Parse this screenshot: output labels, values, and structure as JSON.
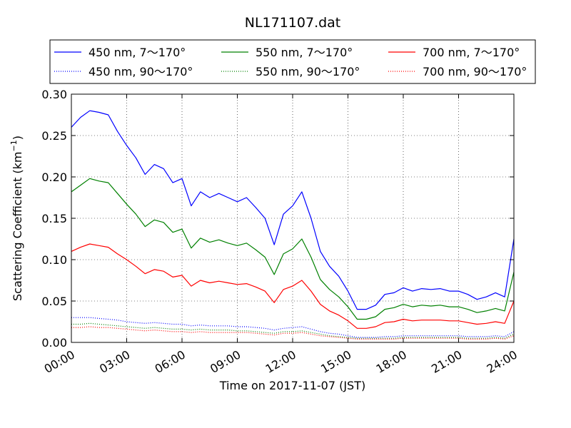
{
  "chart_data": {
    "type": "line",
    "title": "NL171107.dat",
    "xlabel": "Time on 2017-11-07 (JST)",
    "ylabel": "Scattering Coefficient (km",
    "ylabel_sup": "−1",
    "ylabel_close": ")",
    "xlim": [
      0,
      24
    ],
    "ylim": [
      0,
      0.3
    ],
    "grid": true,
    "legend_position": "top",
    "xticks": [
      0,
      3,
      6,
      9,
      12,
      15,
      18,
      21,
      24
    ],
    "xtick_labels": [
      "00:00",
      "03:00",
      "06:00",
      "09:00",
      "12:00",
      "15:00",
      "18:00",
      "21:00",
      "24:00"
    ],
    "yticks": [
      0,
      0.05,
      0.1,
      0.15,
      0.2,
      0.25,
      0.3
    ],
    "ytick_labels": [
      "0.00",
      "0.05",
      "0.10",
      "0.15",
      "0.20",
      "0.25",
      "0.30"
    ],
    "x": [
      0,
      0.5,
      1,
      1.5,
      2,
      2.5,
      3,
      3.5,
      4,
      4.5,
      5,
      5.5,
      6,
      6.5,
      7,
      7.5,
      8,
      8.5,
      9,
      9.5,
      10,
      10.5,
      11,
      11.5,
      12,
      12.5,
      13,
      13.5,
      14,
      14.5,
      15,
      15.5,
      16,
      16.5,
      17,
      17.5,
      18,
      18.5,
      19,
      19.5,
      20,
      20.5,
      21,
      21.5,
      22,
      22.5,
      23,
      23.5,
      24
    ],
    "series": [
      {
        "name": "450 nm, 7～170°",
        "color": "#0000ff",
        "style": "solid",
        "values": [
          0.26,
          0.272,
          0.28,
          0.278,
          0.275,
          0.255,
          0.238,
          0.223,
          0.203,
          0.215,
          0.21,
          0.193,
          0.198,
          0.165,
          0.182,
          0.175,
          0.18,
          0.175,
          0.17,
          0.175,
          0.163,
          0.15,
          0.118,
          0.155,
          0.165,
          0.182,
          0.15,
          0.11,
          0.092,
          0.08,
          0.062,
          0.04,
          0.04,
          0.045,
          0.058,
          0.06,
          0.066,
          0.062,
          0.065,
          0.064,
          0.065,
          0.062,
          0.062,
          0.058,
          0.052,
          0.055,
          0.06,
          0.055,
          0.125
        ]
      },
      {
        "name": "450 nm, 90～170°",
        "color": "#0000ff",
        "style": "dotted",
        "values": [
          0.03,
          0.03,
          0.03,
          0.029,
          0.028,
          0.027,
          0.025,
          0.024,
          0.023,
          0.024,
          0.023,
          0.022,
          0.022,
          0.02,
          0.021,
          0.02,
          0.02,
          0.02,
          0.019,
          0.019,
          0.018,
          0.017,
          0.015,
          0.017,
          0.018,
          0.019,
          0.016,
          0.013,
          0.011,
          0.01,
          0.008,
          0.006,
          0.006,
          0.006,
          0.007,
          0.007,
          0.008,
          0.008,
          0.008,
          0.008,
          0.008,
          0.008,
          0.008,
          0.007,
          0.007,
          0.007,
          0.008,
          0.007,
          0.013
        ]
      },
      {
        "name": "550 nm, 7～170°",
        "color": "#008000",
        "style": "solid",
        "values": [
          0.182,
          0.19,
          0.198,
          0.195,
          0.193,
          0.18,
          0.167,
          0.155,
          0.14,
          0.148,
          0.145,
          0.133,
          0.137,
          0.114,
          0.126,
          0.121,
          0.124,
          0.12,
          0.117,
          0.12,
          0.112,
          0.103,
          0.082,
          0.107,
          0.113,
          0.125,
          0.103,
          0.076,
          0.064,
          0.055,
          0.043,
          0.028,
          0.028,
          0.031,
          0.04,
          0.042,
          0.046,
          0.043,
          0.045,
          0.044,
          0.045,
          0.043,
          0.043,
          0.04,
          0.036,
          0.038,
          0.041,
          0.038,
          0.085
        ]
      },
      {
        "name": "550 nm, 90～170°",
        "color": "#008000",
        "style": "dotted",
        "values": [
          0.022,
          0.022,
          0.023,
          0.022,
          0.021,
          0.02,
          0.019,
          0.018,
          0.017,
          0.018,
          0.017,
          0.016,
          0.016,
          0.015,
          0.016,
          0.015,
          0.015,
          0.015,
          0.014,
          0.014,
          0.013,
          0.012,
          0.011,
          0.013,
          0.013,
          0.014,
          0.012,
          0.01,
          0.008,
          0.007,
          0.006,
          0.005,
          0.005,
          0.005,
          0.005,
          0.005,
          0.006,
          0.006,
          0.006,
          0.006,
          0.006,
          0.006,
          0.006,
          0.005,
          0.005,
          0.005,
          0.006,
          0.005,
          0.01
        ]
      },
      {
        "name": "700 nm, 7～170°",
        "color": "#ff0000",
        "style": "solid",
        "values": [
          0.11,
          0.115,
          0.119,
          0.117,
          0.115,
          0.107,
          0.1,
          0.092,
          0.083,
          0.088,
          0.086,
          0.079,
          0.081,
          0.068,
          0.075,
          0.072,
          0.074,
          0.072,
          0.07,
          0.071,
          0.067,
          0.062,
          0.048,
          0.064,
          0.068,
          0.075,
          0.062,
          0.046,
          0.038,
          0.033,
          0.026,
          0.017,
          0.017,
          0.019,
          0.024,
          0.025,
          0.028,
          0.026,
          0.027,
          0.027,
          0.027,
          0.026,
          0.026,
          0.024,
          0.022,
          0.023,
          0.025,
          0.023,
          0.05
        ]
      },
      {
        "name": "700 nm, 90～170°",
        "color": "#ff0000",
        "style": "dotted",
        "values": [
          0.018,
          0.018,
          0.019,
          0.018,
          0.018,
          0.017,
          0.016,
          0.015,
          0.014,
          0.015,
          0.014,
          0.013,
          0.013,
          0.012,
          0.013,
          0.012,
          0.012,
          0.012,
          0.012,
          0.012,
          0.011,
          0.01,
          0.009,
          0.011,
          0.011,
          0.012,
          0.01,
          0.008,
          0.007,
          0.006,
          0.005,
          0.004,
          0.004,
          0.004,
          0.004,
          0.004,
          0.005,
          0.005,
          0.005,
          0.005,
          0.005,
          0.005,
          0.005,
          0.004,
          0.004,
          0.004,
          0.005,
          0.004,
          0.008
        ]
      }
    ]
  }
}
